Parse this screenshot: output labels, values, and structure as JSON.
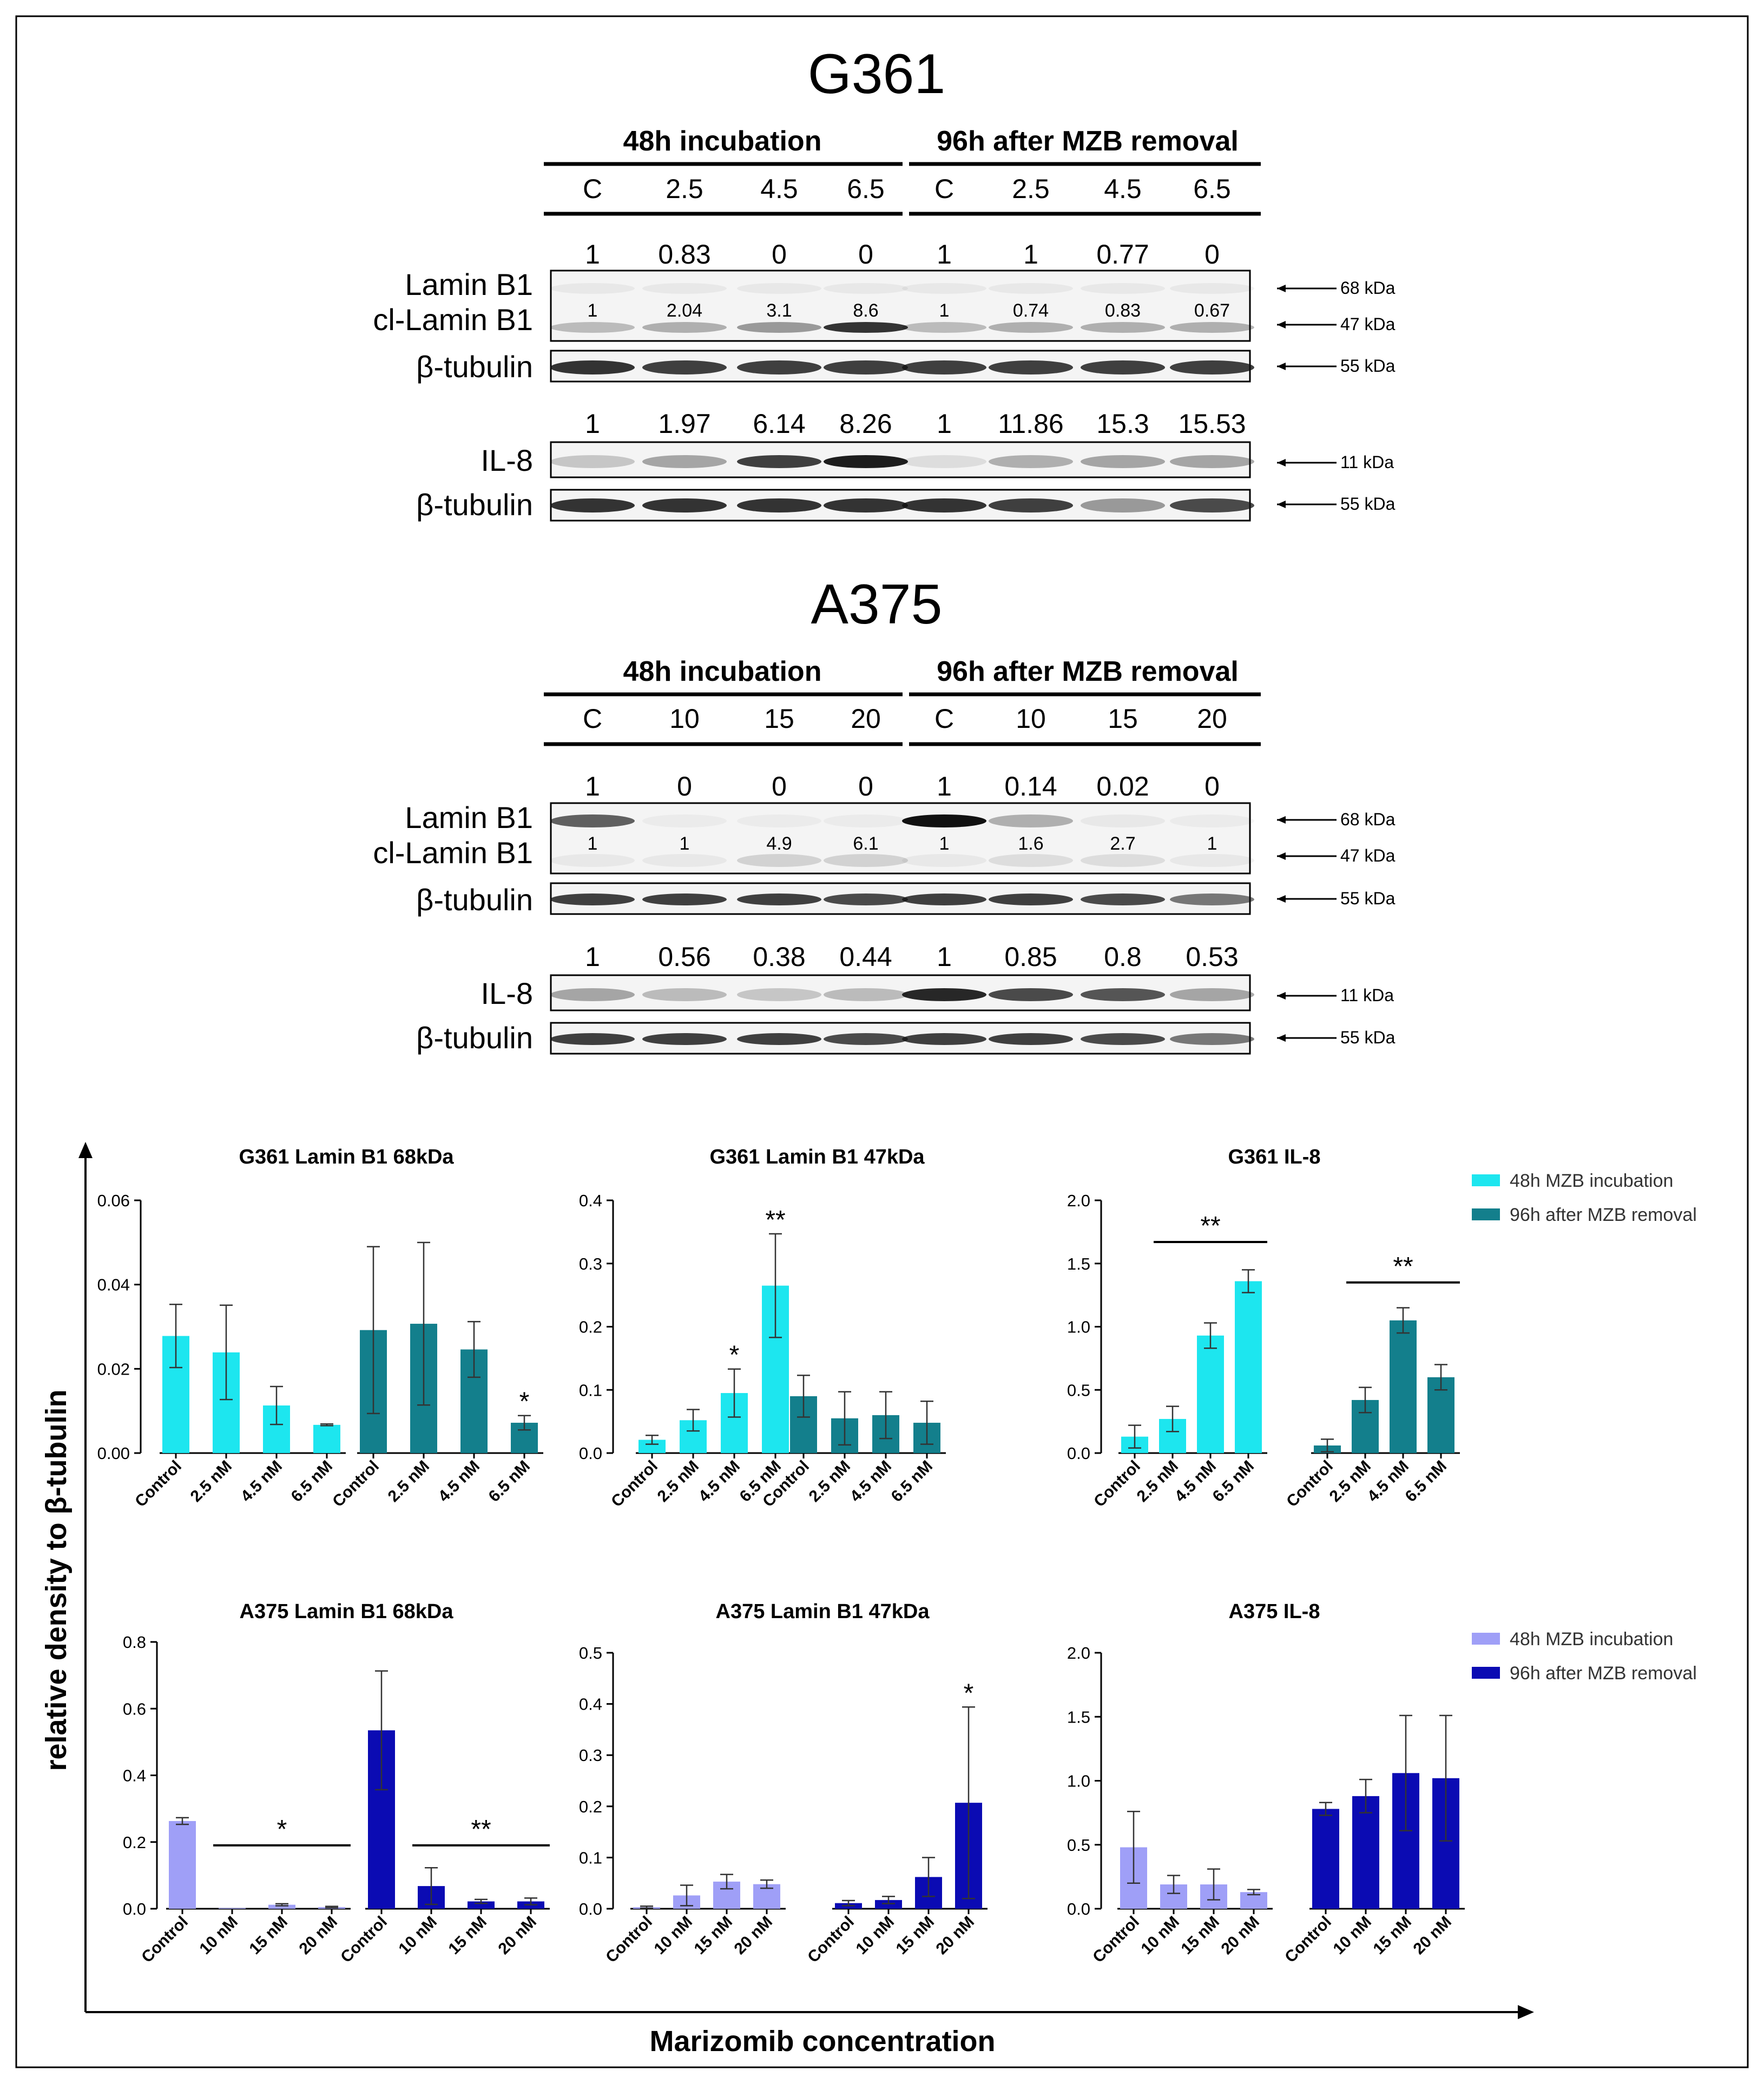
{
  "blots": {
    "g361": {
      "title": "G361",
      "group_48": "48h incubation",
      "group_96": "96h after MZB removal",
      "lanes": [
        "C",
        "2.5",
        "4.5",
        "6.5",
        "C",
        "2.5",
        "4.5",
        "6.5"
      ],
      "lamin_top_values": [
        "1",
        "0.83",
        "0",
        "0",
        "1",
        "1",
        "0.77",
        "0"
      ],
      "lamin_inner_values": [
        "1",
        "2.04",
        "3.1",
        "8.6",
        "1",
        "0.74",
        "0.83",
        "0.67"
      ],
      "il8_values": [
        "1",
        "1.97",
        "6.14",
        "8.26",
        "1",
        "11.86",
        "15.3",
        "15.53"
      ],
      "lamin_band_68": [
        0.05,
        0.05,
        0.05,
        0.05,
        0.05,
        0.05,
        0.05,
        0.05
      ],
      "lamin_band_47": [
        0.25,
        0.3,
        0.4,
        0.85,
        0.25,
        0.3,
        0.3,
        0.3
      ],
      "il8_band": [
        0.2,
        0.35,
        0.8,
        0.95,
        0.1,
        0.3,
        0.35,
        0.35
      ],
      "tubulin1_band": [
        0.85,
        0.8,
        0.8,
        0.8,
        0.8,
        0.8,
        0.8,
        0.8
      ],
      "tubulin2_band": [
        0.85,
        0.85,
        0.85,
        0.85,
        0.85,
        0.8,
        0.4,
        0.75
      ]
    },
    "a375": {
      "title": "A375",
      "group_48": "48h incubation",
      "group_96": "96h after MZB removal",
      "lanes": [
        "C",
        "10",
        "15",
        "20",
        "C",
        "10",
        "15",
        "20"
      ],
      "lamin_top_values": [
        "1",
        "0",
        "0",
        "0",
        "1",
        "0.14",
        "0.02",
        "0"
      ],
      "lamin_inner_values": [
        "1",
        "1",
        "4.9",
        "6.1",
        "1",
        "1.6",
        "2.7",
        "1"
      ],
      "il8_values": [
        "1",
        "0.56",
        "0.38",
        "0.44",
        "1",
        "0.85",
        "0.8",
        "0.53"
      ],
      "lamin_band_68": [
        0.65,
        0.02,
        0.02,
        0.02,
        1.0,
        0.3,
        0.05,
        0.02
      ],
      "lamin_band_47": [
        0.05,
        0.05,
        0.15,
        0.15,
        0.05,
        0.1,
        0.1,
        0.05
      ],
      "il8_band": [
        0.35,
        0.25,
        0.2,
        0.25,
        0.9,
        0.75,
        0.7,
        0.35
      ],
      "tubulin1_band": [
        0.8,
        0.8,
        0.8,
        0.75,
        0.8,
        0.8,
        0.75,
        0.55
      ],
      "tubulin2_band": [
        0.8,
        0.8,
        0.8,
        0.75,
        0.8,
        0.8,
        0.75,
        0.55
      ]
    },
    "row_labels": {
      "lamin": "Lamin B1",
      "cl_lamin": "cl-Lamin B1",
      "tubulin": "β-tubulin",
      "il8": "IL-8"
    },
    "markers": {
      "kda68": "68 kDa",
      "kda47": "47 kDa",
      "kda55": "55 kDa",
      "kda11": "11 kDa"
    }
  },
  "axes": {
    "ylabel": "relative density to β-tubulin",
    "xlabel": "Marizomib concentration"
  },
  "legends": {
    "g361": [
      {
        "label": "48h MZB incubation",
        "color": "#1de6ef"
      },
      {
        "label": "96h after MZB removal",
        "color": "#137f8c"
      }
    ],
    "a375": [
      {
        "label": "48h MZB incubation",
        "color": "#9f9ff7"
      },
      {
        "label": "96h after MZB removal",
        "color": "#0b0bb3"
      }
    ]
  },
  "chart_data": [
    {
      "type": "bar",
      "title": "G361 Lamin B1 68kDa",
      "ylim": [
        0,
        0.06
      ],
      "ticks": [
        "0.00",
        "0.02",
        "0.04",
        "0.06"
      ],
      "categories": [
        "Control",
        "2.5 nM",
        "4.5 nM",
        "6.5 nM"
      ],
      "series": [
        {
          "name": "48h MZB incubation",
          "color": "#1de6ef",
          "values": [
            0.0278,
            0.0239,
            0.0113,
            0.0067
          ],
          "err": [
            0.0075,
            0.0112,
            0.0045,
            0.0002
          ]
        },
        {
          "name": "96h after MZB removal",
          "color": "#137f8c",
          "values": [
            0.0292,
            0.0307,
            0.0246,
            0.0072
          ],
          "err": [
            0.0198,
            0.0193,
            0.0066,
            0.0017
          ]
        }
      ],
      "annotations": [
        {
          "text": "*",
          "series": 1,
          "index": 3
        }
      ],
      "sig_lines": []
    },
    {
      "type": "bar",
      "title": "G361 Lamin B1 47kDa",
      "ylim": [
        0,
        0.4
      ],
      "ticks": [
        "0.0",
        "0.1",
        "0.2",
        "0.3",
        "0.4"
      ],
      "categories": [
        "Control",
        "2.5 nM",
        "4.5 nM",
        "6.5 nM"
      ],
      "series": [
        {
          "name": "48h MZB incubation",
          "color": "#1de6ef",
          "values": [
            0.021,
            0.052,
            0.095,
            0.265
          ],
          "err": [
            0.007,
            0.017,
            0.038,
            0.082
          ]
        },
        {
          "name": "96h after MZB removal",
          "color": "#137f8c",
          "values": [
            0.09,
            0.055,
            0.06,
            0.048
          ],
          "err": [
            0.033,
            0.042,
            0.037,
            0.034
          ]
        }
      ],
      "annotations": [
        {
          "text": "*",
          "series": 0,
          "index": 2
        },
        {
          "text": "**",
          "series": 0,
          "index": 3
        }
      ],
      "sig_lines": []
    },
    {
      "type": "bar",
      "title": "G361 IL-8",
      "ylim": [
        0,
        2.0
      ],
      "ticks": [
        "0.0",
        "0.5",
        "1.0",
        "1.5",
        "2.0"
      ],
      "categories": [
        "Control",
        "2.5 nM",
        "4.5 nM",
        "6.5 nM"
      ],
      "series": [
        {
          "name": "48h MZB incubation",
          "color": "#1de6ef",
          "values": [
            0.13,
            0.27,
            0.93,
            1.36
          ],
          "err": [
            0.09,
            0.1,
            0.1,
            0.09
          ]
        },
        {
          "name": "96h after MZB removal",
          "color": "#137f8c",
          "values": [
            0.06,
            0.42,
            1.05,
            0.6
          ],
          "err": [
            0.05,
            0.1,
            0.1,
            0.1
          ]
        }
      ],
      "annotations": [],
      "sig_lines": [
        {
          "series": 0,
          "from": 1,
          "to": 3,
          "y": 1.67,
          "text": "**"
        },
        {
          "series": 1,
          "from": 1,
          "to": 3,
          "y": 1.35,
          "text": "**"
        }
      ]
    },
    {
      "type": "bar",
      "title": "A375  Lamin B1 68kDa",
      "ylim": [
        0,
        0.8
      ],
      "ticks": [
        "0.0",
        "0.2",
        "0.4",
        "0.6",
        "0.8"
      ],
      "categories": [
        "Control",
        "10 nM",
        "15 nM",
        "20 nM"
      ],
      "series": [
        {
          "name": "48h MZB incubation",
          "color": "#9f9ff7",
          "values": [
            0.263,
            0.002,
            0.012,
            0.005
          ],
          "err": [
            0.01,
            0.0,
            0.003,
            0.002
          ]
        },
        {
          "name": "96h after MZB removal",
          "color": "#0b0bb3",
          "values": [
            0.535,
            0.068,
            0.022,
            0.022
          ],
          "err": [
            0.178,
            0.055,
            0.006,
            0.01
          ]
        }
      ],
      "annotations": [],
      "sig_lines": [
        {
          "series": 0,
          "from": 1,
          "to": 3,
          "y": 0.19,
          "text": "*"
        },
        {
          "series": 1,
          "from": 1,
          "to": 3,
          "y": 0.19,
          "text": "**"
        }
      ]
    },
    {
      "type": "bar",
      "title": "A375  Lamin B1 47kDa",
      "ylim": [
        0,
        0.5
      ],
      "ticks": [
        "0.0",
        "0.1",
        "0.2",
        "0.3",
        "0.4",
        "0.5"
      ],
      "categories": [
        "Control",
        "10 nM",
        "15 nM",
        "20 nM"
      ],
      "series": [
        {
          "name": "48h MZB incubation",
          "color": "#9f9ff7",
          "values": [
            0.003,
            0.026,
            0.053,
            0.048
          ],
          "err": [
            0.002,
            0.02,
            0.014,
            0.008
          ]
        },
        {
          "name": "96h after MZB removal",
          "color": "#0b0bb3",
          "values": [
            0.011,
            0.017,
            0.062,
            0.207
          ],
          "err": [
            0.005,
            0.007,
            0.038,
            0.187
          ]
        }
      ],
      "annotations": [
        {
          "text": "*",
          "series": 1,
          "index": 3
        }
      ],
      "sig_lines": []
    },
    {
      "type": "bar",
      "title": "A375 IL-8",
      "ylim": [
        0,
        2.0
      ],
      "ticks": [
        "0.0",
        "0.5",
        "1.0",
        "1.5",
        "2.0"
      ],
      "categories": [
        "Control",
        "10 nM",
        "15 nM",
        "20 nM"
      ],
      "series": [
        {
          "name": "48h MZB incubation",
          "color": "#9f9ff7",
          "values": [
            0.48,
            0.19,
            0.19,
            0.13
          ],
          "err": [
            0.28,
            0.07,
            0.12,
            0.02
          ]
        },
        {
          "name": "96h after MZB removal",
          "color": "#0b0bb3",
          "values": [
            0.78,
            0.88,
            1.06,
            1.02
          ],
          "err": [
            0.05,
            0.13,
            0.45,
            0.49
          ]
        }
      ],
      "annotations": [],
      "sig_lines": []
    }
  ]
}
